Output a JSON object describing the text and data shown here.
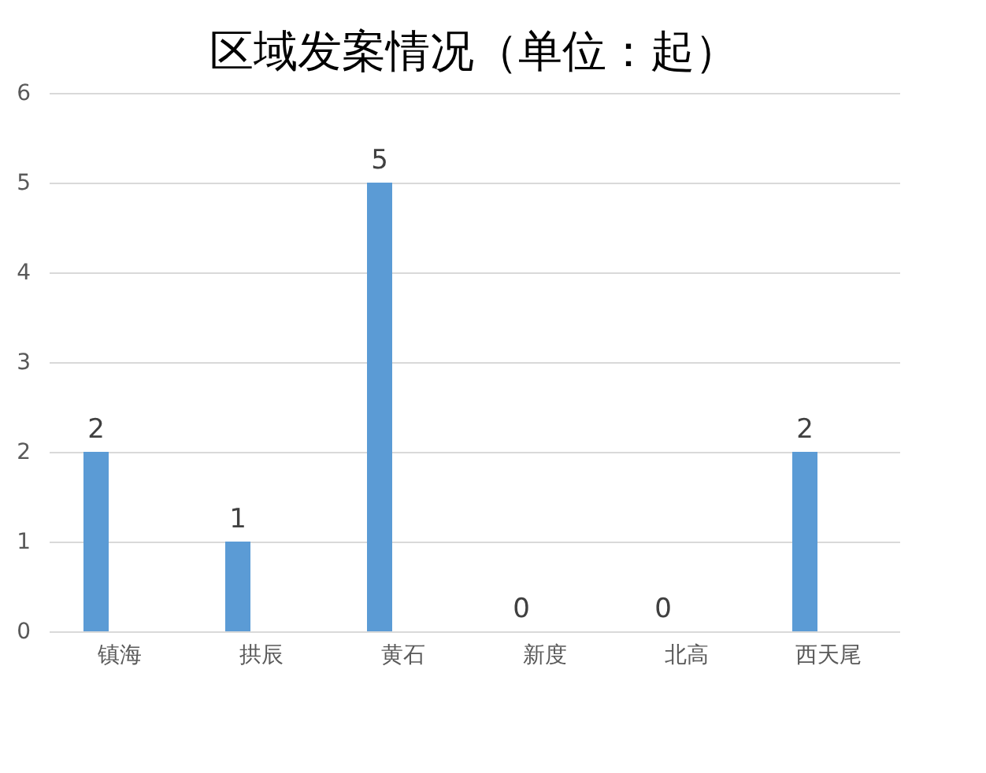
{
  "chart_data": {
    "type": "bar",
    "title": "区域发案情况（单位：起）",
    "categories": [
      "镇海",
      "拱辰",
      "黄石",
      "新度",
      "北高",
      "西天尾"
    ],
    "values": [
      2,
      1,
      5,
      0,
      0,
      2
    ],
    "color": "#5b9bd5",
    "ylim": [
      0,
      6
    ],
    "yticks": [
      0,
      1,
      2,
      3,
      4,
      5,
      6
    ],
    "grid": "y",
    "data_labels": true
  }
}
